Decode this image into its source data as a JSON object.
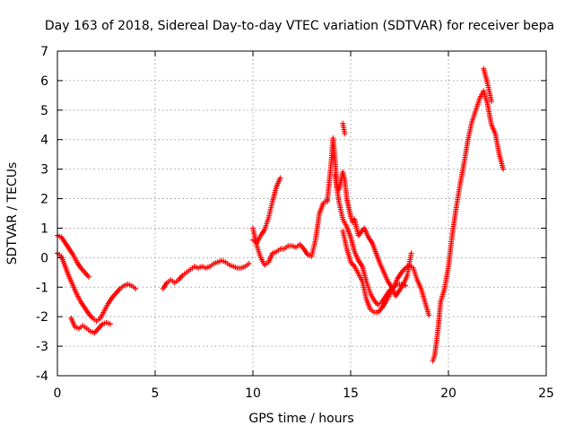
{
  "chart_data": {
    "type": "scatter",
    "title": "Day 163 of 2018, Sidereal Day-to-day VTEC variation (SDTVAR) for receiver bepa",
    "xlabel": "GPS time / hours",
    "ylabel": "SDTVAR / TECUs",
    "xlim": [
      0,
      25
    ],
    "ylim": [
      -4,
      7
    ],
    "xticks": [
      0,
      5,
      10,
      15,
      20,
      25
    ],
    "xtick_labels": [
      "0",
      "5",
      "10",
      "15",
      "20",
      "25"
    ],
    "yticks": [
      -4,
      -3,
      -2,
      -1,
      0,
      1,
      2,
      3,
      4,
      5,
      6,
      7
    ],
    "ytick_labels": [
      "-4",
      "-3",
      "-2",
      "-1",
      "0",
      "1",
      "2",
      "3",
      "4",
      "5",
      "6",
      "7"
    ],
    "grid": true,
    "marker": "+",
    "series_color": "#ff0000",
    "series": [
      {
        "name": "SDTVAR",
        "segments": [
          [
            [
              0.0,
              0.75
            ],
            [
              0.2,
              0.7
            ],
            [
              0.4,
              0.5
            ],
            [
              0.6,
              0.3
            ],
            [
              0.8,
              0.1
            ],
            [
              1.0,
              -0.15
            ],
            [
              1.2,
              -0.35
            ],
            [
              1.4,
              -0.5
            ],
            [
              1.6,
              -0.65
            ]
          ],
          [
            [
              0.0,
              0.15
            ],
            [
              0.2,
              0.05
            ],
            [
              0.4,
              -0.3
            ],
            [
              0.6,
              -0.65
            ],
            [
              0.8,
              -0.95
            ],
            [
              1.0,
              -1.25
            ],
            [
              1.2,
              -1.5
            ],
            [
              1.4,
              -1.7
            ],
            [
              1.6,
              -1.9
            ],
            [
              1.8,
              -2.05
            ],
            [
              2.0,
              -2.15
            ],
            [
              2.2,
              -2.05
            ],
            [
              2.4,
              -1.8
            ],
            [
              2.6,
              -1.55
            ],
            [
              2.8,
              -1.35
            ],
            [
              3.0,
              -1.2
            ],
            [
              3.2,
              -1.05
            ],
            [
              3.4,
              -0.95
            ],
            [
              3.6,
              -0.9
            ],
            [
              3.8,
              -0.95
            ],
            [
              4.0,
              -1.05
            ]
          ],
          [
            [
              0.7,
              -2.05
            ],
            [
              0.9,
              -2.35
            ],
            [
              1.1,
              -2.4
            ],
            [
              1.3,
              -2.3
            ],
            [
              1.5,
              -2.4
            ],
            [
              1.7,
              -2.5
            ],
            [
              1.9,
              -2.55
            ],
            [
              2.1,
              -2.4
            ],
            [
              2.3,
              -2.25
            ],
            [
              2.5,
              -2.2
            ],
            [
              2.7,
              -2.25
            ]
          ],
          [
            [
              5.4,
              -1.05
            ],
            [
              5.6,
              -0.85
            ],
            [
              5.8,
              -0.75
            ],
            [
              6.0,
              -0.85
            ],
            [
              6.2,
              -0.75
            ],
            [
              6.4,
              -0.6
            ],
            [
              6.6,
              -0.5
            ],
            [
              6.8,
              -0.4
            ],
            [
              7.0,
              -0.3
            ],
            [
              7.2,
              -0.35
            ],
            [
              7.4,
              -0.3
            ],
            [
              7.6,
              -0.35
            ],
            [
              7.8,
              -0.3
            ],
            [
              8.0,
              -0.2
            ],
            [
              8.2,
              -0.15
            ],
            [
              8.4,
              -0.1
            ],
            [
              8.6,
              -0.15
            ],
            [
              8.8,
              -0.25
            ],
            [
              9.0,
              -0.3
            ],
            [
              9.2,
              -0.35
            ],
            [
              9.4,
              -0.35
            ],
            [
              9.6,
              -0.3
            ],
            [
              9.8,
              -0.2
            ]
          ],
          [
            [
              10.0,
              0.6
            ],
            [
              10.2,
              0.5
            ],
            [
              10.4,
              0.75
            ],
            [
              10.6,
              0.95
            ],
            [
              10.8,
              1.35
            ],
            [
              11.0,
              1.9
            ],
            [
              11.2,
              2.4
            ],
            [
              11.4,
              2.7
            ]
          ],
          [
            [
              10.0,
              1.0
            ],
            [
              10.2,
              0.4
            ],
            [
              10.4,
              0.0
            ],
            [
              10.6,
              -0.25
            ],
            [
              10.8,
              -0.15
            ],
            [
              11.0,
              0.15
            ],
            [
              11.2,
              0.2
            ],
            [
              11.4,
              0.3
            ],
            [
              11.6,
              0.3
            ],
            [
              11.8,
              0.4
            ],
            [
              12.0,
              0.4
            ],
            [
              12.2,
              0.35
            ],
            [
              12.4,
              0.45
            ],
            [
              12.6,
              0.3
            ],
            [
              12.8,
              0.1
            ],
            [
              13.0,
              0.05
            ],
            [
              13.2,
              0.6
            ],
            [
              13.4,
              1.5
            ],
            [
              13.6,
              1.85
            ],
            [
              13.8,
              1.95
            ]
          ],
          [
            [
              13.8,
              1.9
            ],
            [
              14.0,
              3.2
            ],
            [
              14.1,
              4.05
            ],
            [
              14.2,
              3.3
            ],
            [
              14.3,
              2.4
            ],
            [
              14.4,
              2.3
            ],
            [
              14.5,
              2.6
            ],
            [
              14.6,
              2.9
            ],
            [
              14.7,
              2.6
            ],
            [
              14.8,
              2.0
            ],
            [
              14.9,
              1.7
            ],
            [
              15.0,
              1.4
            ],
            [
              15.1,
              1.2
            ],
            [
              15.2,
              1.3
            ],
            [
              15.3,
              1.0
            ],
            [
              15.4,
              0.75
            ],
            [
              15.5,
              0.85
            ],
            [
              15.7,
              1.0
            ],
            [
              15.9,
              0.7
            ],
            [
              16.1,
              0.5
            ],
            [
              16.3,
              0.15
            ],
            [
              16.5,
              -0.2
            ],
            [
              16.7,
              -0.5
            ],
            [
              16.9,
              -0.8
            ],
            [
              17.1,
              -1.0
            ],
            [
              17.3,
              -1.3
            ],
            [
              17.5,
              -1.1
            ],
            [
              17.7,
              -0.9
            ],
            [
              17.9,
              -0.6
            ],
            [
              18.0,
              -0.2
            ],
            [
              18.1,
              0.15
            ]
          ],
          [
            [
              14.2,
              2.8
            ],
            [
              14.4,
              1.9
            ],
            [
              14.6,
              1.3
            ],
            [
              14.8,
              1.05
            ],
            [
              15.0,
              0.7
            ],
            [
              15.2,
              0.2
            ],
            [
              15.4,
              -0.1
            ],
            [
              15.6,
              -0.3
            ],
            [
              15.8,
              -0.8
            ],
            [
              16.0,
              -1.2
            ],
            [
              16.2,
              -1.45
            ],
            [
              16.4,
              -1.6
            ],
            [
              16.6,
              -1.5
            ],
            [
              16.8,
              -1.3
            ],
            [
              17.0,
              -1.1
            ],
            [
              17.2,
              -1.0
            ],
            [
              17.4,
              -0.9
            ],
            [
              17.6,
              -0.9
            ],
            [
              17.8,
              -0.95
            ]
          ],
          [
            [
              14.6,
              4.55
            ],
            [
              14.7,
              4.2
            ]
          ],
          [
            [
              14.6,
              0.9
            ],
            [
              14.8,
              0.3
            ],
            [
              15.0,
              -0.15
            ],
            [
              15.2,
              -0.3
            ],
            [
              15.4,
              -0.55
            ],
            [
              15.6,
              -0.8
            ],
            [
              15.8,
              -1.4
            ],
            [
              16.0,
              -1.75
            ],
            [
              16.2,
              -1.85
            ],
            [
              16.4,
              -1.85
            ],
            [
              16.6,
              -1.7
            ],
            [
              16.8,
              -1.5
            ],
            [
              17.0,
              -1.25
            ],
            [
              17.2,
              -1.0
            ],
            [
              17.4,
              -0.7
            ],
            [
              17.6,
              -0.5
            ],
            [
              17.8,
              -0.35
            ],
            [
              18.0,
              -0.25
            ],
            [
              18.2,
              -0.35
            ],
            [
              18.4,
              -0.75
            ],
            [
              18.6,
              -1.05
            ],
            [
              18.8,
              -1.5
            ],
            [
              19.0,
              -1.95
            ]
          ],
          [
            [
              19.2,
              -3.5
            ],
            [
              19.3,
              -3.3
            ],
            [
              19.4,
              -2.8
            ],
            [
              19.5,
              -2.2
            ],
            [
              19.6,
              -1.5
            ],
            [
              19.8,
              -1.05
            ],
            [
              20.0,
              -0.3
            ],
            [
              20.2,
              0.8
            ],
            [
              20.4,
              1.7
            ],
            [
              20.6,
              2.5
            ],
            [
              20.8,
              3.2
            ],
            [
              21.0,
              4.0
            ],
            [
              21.2,
              4.6
            ],
            [
              21.4,
              5.0
            ],
            [
              21.6,
              5.4
            ],
            [
              21.8,
              5.65
            ],
            [
              22.0,
              5.2
            ],
            [
              22.2,
              4.5
            ],
            [
              22.4,
              4.2
            ],
            [
              22.6,
              3.5
            ],
            [
              22.8,
              3.0
            ]
          ],
          [
            [
              21.8,
              6.4
            ],
            [
              22.0,
              5.9
            ],
            [
              22.2,
              5.3
            ]
          ]
        ]
      }
    ]
  }
}
